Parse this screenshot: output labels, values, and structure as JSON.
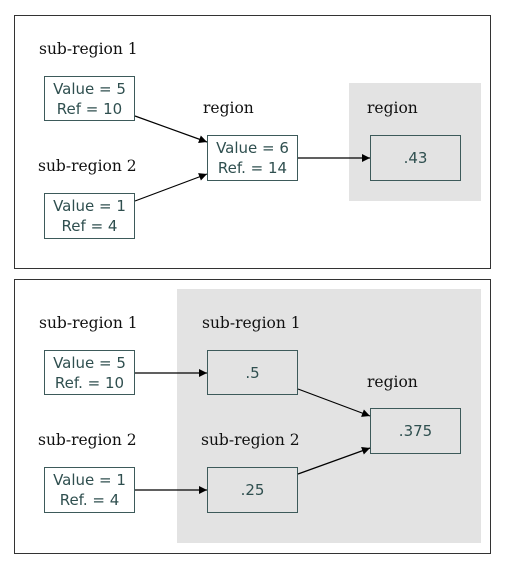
{
  "colors": {
    "shade": "#e3e3e3",
    "box_border": "#3d5a5a",
    "box_text": "#2f4f4f",
    "arrow": "#000000"
  },
  "top": {
    "sub1": {
      "label": "sub-region 1",
      "line1": "Value = 5",
      "line2": "Ref = 10"
    },
    "sub2": {
      "label": "sub-region 2",
      "line1": "Value = 1",
      "line2": "Ref = 4"
    },
    "region": {
      "label": "region",
      "line1": "Value = 6",
      "line2": "Ref. = 14"
    },
    "result": {
      "label": "region",
      "value": ".43"
    }
  },
  "bottom": {
    "sub1": {
      "label": "sub-region 1",
      "line1": "Value = 5",
      "line2": "Ref. = 10"
    },
    "sub2": {
      "label": "sub-region 2",
      "line1": "Value = 1",
      "line2": "Ref. = 4"
    },
    "ratio1": {
      "label": "sub-region 1",
      "value": ".5"
    },
    "ratio2": {
      "label": "sub-region 2",
      "value": ".25"
    },
    "result": {
      "label": "region",
      "value": ".375"
    }
  }
}
